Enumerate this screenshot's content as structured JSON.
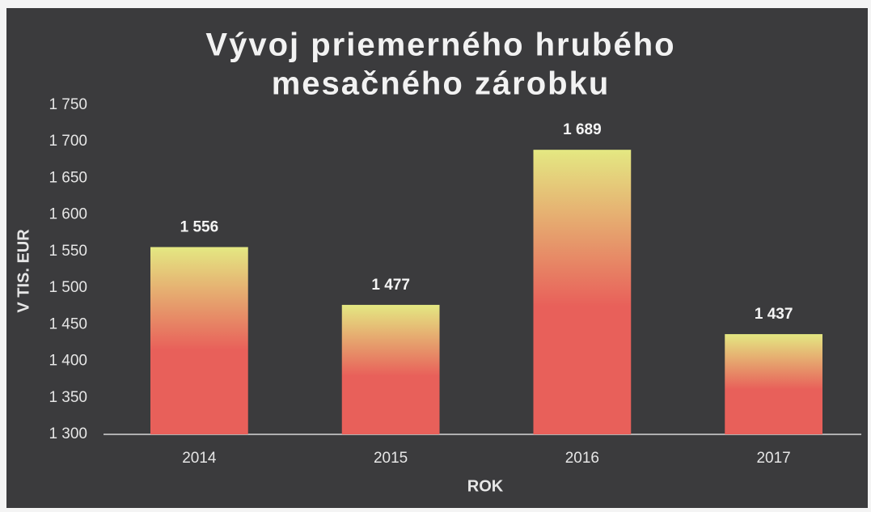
{
  "chart_data": {
    "type": "bar",
    "title": [
      "Vývoj priemerného hrubého",
      "mesačného zárobku"
    ],
    "x_label": "ROK",
    "y_label": "V TIS. EUR",
    "categories": [
      "2014",
      "2015",
      "2016",
      "2017"
    ],
    "values": [
      1556,
      1477,
      1689,
      1437
    ],
    "value_labels": [
      "1 556",
      "1 477",
      "1 689",
      "1 437"
    ],
    "color": [
      "#e4e882",
      "#e8605a"
    ],
    "ylim": [
      1300,
      1750
    ],
    "yticks": [
      {
        "value": 1300,
        "label": "1 300"
      },
      {
        "value": 1350,
        "label": "1 350"
      },
      {
        "value": 1400,
        "label": "1 400"
      },
      {
        "value": 1450,
        "label": "1 450"
      },
      {
        "value": 1500,
        "label": "1 500"
      },
      {
        "value": 1550,
        "label": "1 550"
      },
      {
        "value": 1600,
        "label": "1 600"
      },
      {
        "value": 1650,
        "label": "1 650"
      },
      {
        "value": 1700,
        "label": "1 700"
      },
      {
        "value": 1750,
        "label": "1 750"
      }
    ],
    "grid": true
  }
}
